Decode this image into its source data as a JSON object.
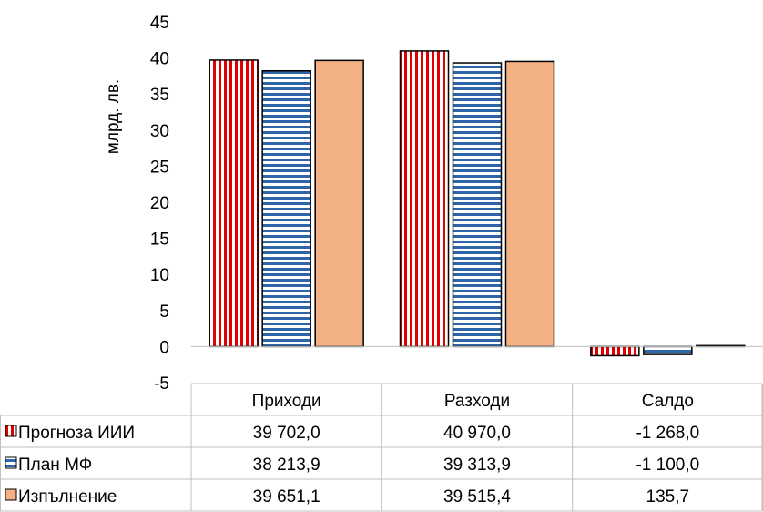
{
  "chart_data": {
    "type": "bar",
    "title": "",
    "ylabel": "млрд. лв.",
    "xlabel": "",
    "ylim": [
      -5,
      45
    ],
    "yticks": [
      -5,
      0,
      5,
      10,
      15,
      20,
      25,
      30,
      35,
      40,
      45
    ],
    "categories": [
      "Приходи",
      "Разходи",
      "Салдо"
    ],
    "series": [
      {
        "name": "Прогноза ИИИ",
        "pattern": "vertical-stripes",
        "colors": {
          "primary": "#e00000",
          "secondary": "#ffffff"
        },
        "values": [
          39.702,
          40.97,
          -1.268
        ],
        "table_values": [
          "39 702,0",
          "40 970,0",
          "-1 268,0"
        ]
      },
      {
        "name": "План МФ",
        "pattern": "horizontal-stripes",
        "colors": {
          "primary": "#2e64a8",
          "secondary": "#ffffff"
        },
        "values": [
          38.2139,
          39.3139,
          -1.1
        ],
        "table_values": [
          "38 213,9",
          "39 313,9",
          "-1 100,0"
        ]
      },
      {
        "name": "Изпълнение",
        "pattern": "solid",
        "colors": {
          "primary": "#f4b183",
          "secondary": "#f4b183"
        },
        "values": [
          39.6511,
          39.5154,
          0.1357
        ],
        "table_values": [
          "39 651,1",
          "39 515,4",
          "135,7"
        ]
      }
    ],
    "grid": false,
    "legend": "data-table"
  }
}
